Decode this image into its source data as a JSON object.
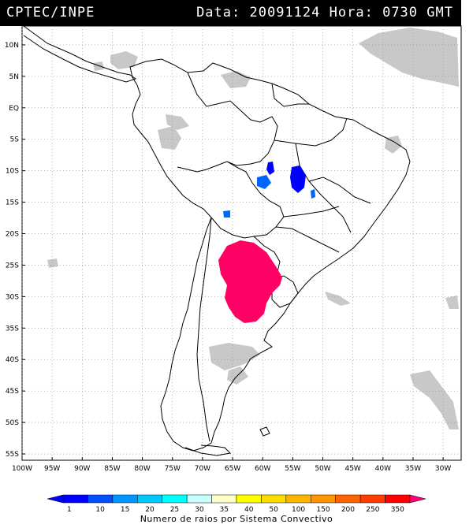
{
  "header": {
    "source": "CPTEC/INPE",
    "data_label": "Data:",
    "date": "20091124",
    "hora_label": "Hora:",
    "time": "0730",
    "tz": "GMT"
  },
  "map": {
    "lon_range": [
      -100,
      -27
    ],
    "lat_range": [
      -56,
      13
    ],
    "lat_labels": [
      {
        "lat": 10,
        "label": "10N"
      },
      {
        "lat": 5,
        "label": "5N"
      },
      {
        "lat": 0,
        "label": "EQ"
      },
      {
        "lat": -5,
        "label": "5S"
      },
      {
        "lat": -10,
        "label": "10S"
      },
      {
        "lat": -15,
        "label": "15S"
      },
      {
        "lat": -20,
        "label": "20S"
      },
      {
        "lat": -25,
        "label": "25S"
      },
      {
        "lat": -30,
        "label": "30S"
      },
      {
        "lat": -35,
        "label": "35S"
      },
      {
        "lat": -40,
        "label": "40S"
      },
      {
        "lat": -45,
        "label": "45S"
      },
      {
        "lat": -50,
        "label": "50S"
      },
      {
        "lat": -55,
        "label": "55S"
      }
    ],
    "lon_labels": [
      {
        "lon": -100,
        "label": "100W"
      },
      {
        "lon": -95,
        "label": "95W"
      },
      {
        "lon": -90,
        "label": "90W"
      },
      {
        "lon": -85,
        "label": "85W"
      },
      {
        "lon": -80,
        "label": "80W"
      },
      {
        "lon": -75,
        "label": "75W"
      },
      {
        "lon": -70,
        "label": "70W"
      },
      {
        "lon": -65,
        "label": "65W"
      },
      {
        "lon": -60,
        "label": "60W"
      },
      {
        "lon": -55,
        "label": "55W"
      },
      {
        "lon": -50,
        "label": "50W"
      },
      {
        "lon": -45,
        "label": "45W"
      },
      {
        "lon": -40,
        "label": "40W"
      },
      {
        "lon": -35,
        "label": "35W"
      },
      {
        "lon": -30,
        "label": "30W"
      }
    ]
  },
  "legend": {
    "title": "Numero de raios por Sistema Convectivo",
    "bins": [
      {
        "label": "1",
        "color": "#0000ff"
      },
      {
        "label": "10",
        "color": "#0050ff"
      },
      {
        "label": "15",
        "color": "#0096ff"
      },
      {
        "label": "20",
        "color": "#00c8ff"
      },
      {
        "label": "25",
        "color": "#00ffff"
      },
      {
        "label": "30",
        "color": "#c8ffff"
      },
      {
        "label": "35",
        "color": "#ffffc8"
      },
      {
        "label": "40",
        "color": "#ffff00"
      },
      {
        "label": "50",
        "color": "#ffdc00"
      },
      {
        "label": "100",
        "color": "#ffb400"
      },
      {
        "label": "150",
        "color": "#ff9600"
      },
      {
        "label": "200",
        "color": "#ff6400"
      },
      {
        "label": "250",
        "color": "#ff3c00"
      },
      {
        "label": "350",
        "color": "#ff0000"
      }
    ],
    "over_color": "#ff0078",
    "under_color": "#0000ff"
  },
  "colors": {
    "cloud": "#c8c8c8",
    "coast": "#000000",
    "grid": "#888888",
    "lightning_high": "#ff0064",
    "lightning_low": "#0000ff",
    "lightning_mid": "#0064ff"
  }
}
